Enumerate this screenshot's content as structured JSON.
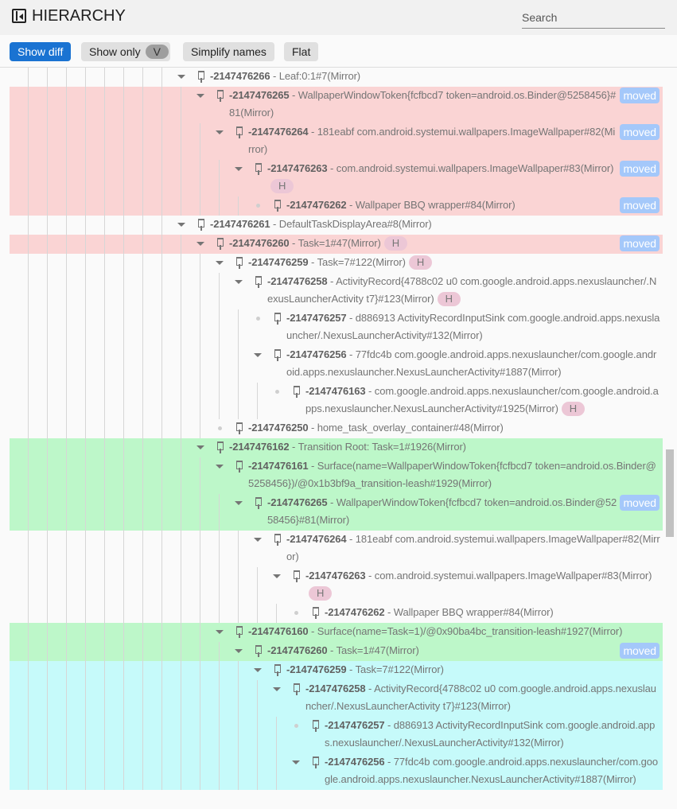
{
  "header": {
    "title": "HIERARCHY",
    "search_placeholder": "Search",
    "icon": "panel-collapse-icon"
  },
  "toolbar": {
    "show_diff": "Show diff",
    "show_only": "Show only",
    "show_only_chip": "V",
    "simplify": "Simplify names",
    "flat": "Flat"
  },
  "colors": {
    "removed": "#fad4d4",
    "added": "#bdf7c9",
    "modified": "#c6fafa",
    "moved_badge": "#a4c8fa",
    "hidden_badge": "#ecc7d6",
    "primary": "#1a73d2"
  },
  "badges": {
    "moved": "moved",
    "hidden": "H"
  },
  "rows": [
    {
      "depth": 0,
      "leaf": false,
      "id": "-2147476266",
      "name": "Leaf:0:1#7(Mirror)",
      "diff": ""
    },
    {
      "depth": 1,
      "leaf": false,
      "id": "-2147476265",
      "name": "WallpaperWindowToken{fcfbcd7 token=android.os.Binder@5258456}#81(Mirror)",
      "diff": "removed",
      "moved": true
    },
    {
      "depth": 2,
      "leaf": false,
      "id": "-2147476264",
      "name": "181eabf com.android.systemui.wallpapers.ImageWallpaper#82(Mirror)",
      "diff": "removed",
      "moved": true
    },
    {
      "depth": 3,
      "leaf": false,
      "id": "-2147476263",
      "name": "com.android.systemui.wallpapers.ImageWallpaper#83(Mirror)",
      "diff": "removed",
      "moved": true,
      "hidden": true
    },
    {
      "depth": 4,
      "leaf": true,
      "id": "-2147476262",
      "name": "Wallpaper BBQ wrapper#84(Mirror)",
      "diff": "removed",
      "moved": true
    },
    {
      "depth": 0,
      "leaf": false,
      "id": "-2147476261",
      "name": "DefaultTaskDisplayArea#8(Mirror)",
      "diff": ""
    },
    {
      "depth": 1,
      "leaf": false,
      "id": "-2147476260",
      "name": "Task=1#47(Mirror)",
      "diff": "removed",
      "moved": true,
      "hidden": true
    },
    {
      "depth": 2,
      "leaf": false,
      "id": "-2147476259",
      "name": "Task=7#122(Mirror)",
      "diff": "",
      "hidden": true
    },
    {
      "depth": 3,
      "leaf": false,
      "id": "-2147476258",
      "name": "ActivityRecord{4788c02 u0 com.google.android.apps.nexuslauncher/.NexusLauncherActivity t7}#123(Mirror)",
      "diff": "",
      "hidden": true
    },
    {
      "depth": 4,
      "leaf": true,
      "id": "-2147476257",
      "name": "d886913 ActivityRecordInputSink com.google.android.apps.nexuslauncher/.NexusLauncherActivity#132(Mirror)",
      "diff": ""
    },
    {
      "depth": 4,
      "leaf": false,
      "id": "-2147476256",
      "name": "77fdc4b com.google.android.apps.nexuslauncher/com.google.android.apps.nexuslauncher.NexusLauncherActivity#1887(Mirror)",
      "diff": ""
    },
    {
      "depth": 5,
      "leaf": true,
      "id": "-2147476163",
      "name": "com.google.android.apps.nexuslauncher/com.google.android.apps.nexuslauncher.NexusLauncherActivity#1925(Mirror)",
      "diff": "",
      "hidden": true
    },
    {
      "depth": 2,
      "leaf": true,
      "id": "-2147476250",
      "name": "home_task_overlay_container#48(Mirror)",
      "diff": ""
    },
    {
      "depth": 1,
      "leaf": false,
      "id": "-2147476162",
      "name": "Transition Root: Task=1#1926(Mirror)",
      "diff": "added"
    },
    {
      "depth": 2,
      "leaf": false,
      "id": "-2147476161",
      "name": "Surface(name=WallpaperWindowToken{fcfbcd7 token=android.os.Binder@5258456})/@0x1b3bf9a_transition-leash#1929(Mirror)",
      "diff": "added"
    },
    {
      "depth": 3,
      "leaf": false,
      "id": "-2147476265",
      "name": "WallpaperWindowToken{fcfbcd7 token=android.os.Binder@5258456}#81(Mirror)",
      "diff": "added",
      "moved": true
    },
    {
      "depth": 4,
      "leaf": false,
      "id": "-2147476264",
      "name": "181eabf com.android.systemui.wallpapers.ImageWallpaper#82(Mirror)",
      "diff": ""
    },
    {
      "depth": 5,
      "leaf": false,
      "id": "-2147476263",
      "name": "com.android.systemui.wallpapers.ImageWallpaper#83(Mirror)",
      "diff": "",
      "hidden": true
    },
    {
      "depth": 6,
      "leaf": true,
      "id": "-2147476262",
      "name": "Wallpaper BBQ wrapper#84(Mirror)",
      "diff": ""
    },
    {
      "depth": 2,
      "leaf": false,
      "id": "-2147476160",
      "name": "Surface(name=Task=1)/@0x90ba4bc_transition-leash#1927(Mirror)",
      "diff": "added"
    },
    {
      "depth": 3,
      "leaf": false,
      "id": "-2147476260",
      "name": "Task=1#47(Mirror)",
      "diff": "added",
      "moved": true
    },
    {
      "depth": 4,
      "leaf": false,
      "id": "-2147476259",
      "name": "Task=7#122(Mirror)",
      "diff": "modified"
    },
    {
      "depth": 5,
      "leaf": false,
      "id": "-2147476258",
      "name": "ActivityRecord{4788c02 u0 com.google.android.apps.nexuslauncher/.NexusLauncherActivity t7}#123(Mirror)",
      "diff": "modified"
    },
    {
      "depth": 6,
      "leaf": true,
      "id": "-2147476257",
      "name": "d886913 ActivityRecordInputSink com.google.android.apps.nexuslauncher/.NexusLauncherActivity#132(Mirror)",
      "diff": "modified"
    },
    {
      "depth": 6,
      "leaf": false,
      "id": "-2147476256",
      "name": "77fdc4b com.google.android.apps.nexuslauncher/com.google.android.apps.nexuslauncher.NexusLauncherActivity#1887(Mirror)",
      "diff": "modified"
    }
  ]
}
